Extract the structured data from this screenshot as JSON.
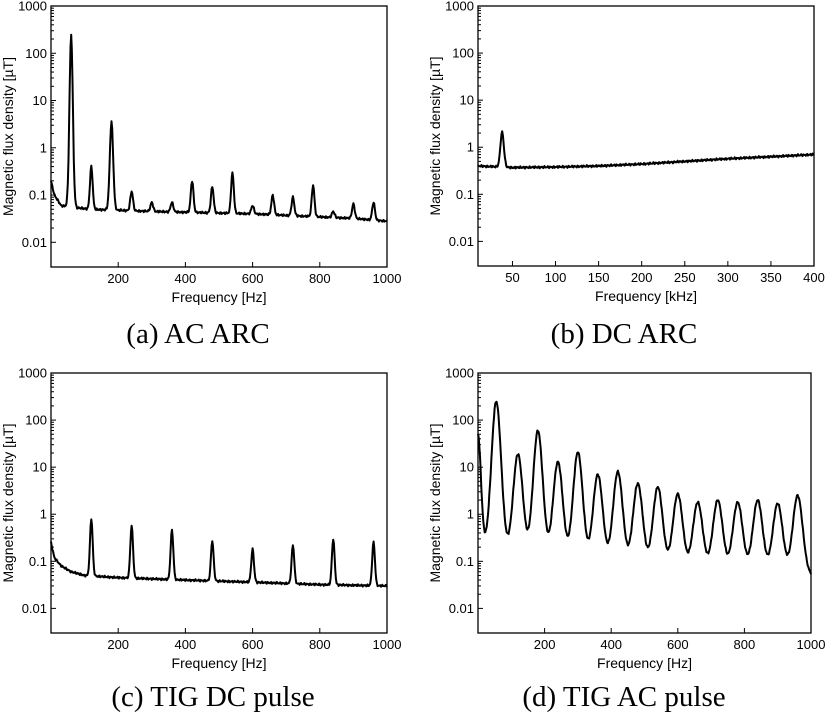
{
  "chart_data": [
    {
      "type": "line",
      "caption": "(a)  AC  ARC",
      "xlabel": "Frequency [Hz]",
      "ylabel": "Magnetic flux density [µT]",
      "x_ticks": [
        200,
        400,
        600,
        800,
        1000
      ],
      "y_ticks": [
        "0.01",
        "0.1",
        "1",
        "10",
        "100",
        "1000"
      ],
      "xlim": [
        0,
        1000
      ],
      "ylim": [
        0.003,
        1000
      ],
      "yscale": "log",
      "baseline": {
        "x": [
          0,
          10,
          30,
          60,
          120,
          300,
          600,
          900,
          1000
        ],
        "y": [
          0.2,
          0.1,
          0.06,
          0.055,
          0.05,
          0.045,
          0.04,
          0.032,
          0.028
        ]
      },
      "peaks": [
        {
          "x": 60,
          "y": 250,
          "w": 5
        },
        {
          "x": 120,
          "y": 0.4,
          "w": 4
        },
        {
          "x": 180,
          "y": 3.5,
          "w": 5
        },
        {
          "x": 240,
          "y": 0.12,
          "w": 4
        },
        {
          "x": 300,
          "y": 0.07,
          "w": 4
        },
        {
          "x": 360,
          "y": 0.07,
          "w": 4
        },
        {
          "x": 420,
          "y": 0.2,
          "w": 4
        },
        {
          "x": 480,
          "y": 0.15,
          "w": 4
        },
        {
          "x": 540,
          "y": 0.3,
          "w": 4
        },
        {
          "x": 600,
          "y": 0.06,
          "w": 4
        },
        {
          "x": 660,
          "y": 0.1,
          "w": 4
        },
        {
          "x": 720,
          "y": 0.09,
          "w": 4
        },
        {
          "x": 780,
          "y": 0.16,
          "w": 4
        },
        {
          "x": 840,
          "y": 0.045,
          "w": 4
        },
        {
          "x": 900,
          "y": 0.065,
          "w": 4
        },
        {
          "x": 960,
          "y": 0.07,
          "w": 4
        }
      ]
    },
    {
      "type": "line",
      "caption": "(b)  DC  ARC",
      "xlabel": "Frequency [kHz]",
      "ylabel": "Magnetic flux density [µT]",
      "x_ticks": [
        50,
        100,
        150,
        200,
        250,
        300,
        350,
        400
      ],
      "y_ticks": [
        "0.01",
        "0.1",
        "1",
        "10",
        "100",
        "1000"
      ],
      "xlim": [
        10,
        400
      ],
      "ylim": [
        0.003,
        1000
      ],
      "yscale": "log",
      "baseline": {
        "x": [
          10,
          50,
          100,
          150,
          200,
          250,
          300,
          350,
          400
        ],
        "y": [
          0.4,
          0.37,
          0.38,
          0.4,
          0.44,
          0.5,
          0.57,
          0.63,
          0.7
        ]
      },
      "peaks": [
        {
          "x": 38,
          "y": 2.1,
          "w": 2
        }
      ]
    },
    {
      "type": "line",
      "caption": "(c)  TIG  DC  pulse",
      "xlabel": "Frequency [Hz]",
      "ylabel": "Magnetic flux density [µT]",
      "x_ticks": [
        200,
        400,
        600,
        800,
        1000
      ],
      "y_ticks": [
        "0.01",
        "0.1",
        "1",
        "10",
        "100",
        "1000"
      ],
      "xlim": [
        0,
        1000
      ],
      "ylim": [
        0.003,
        1000
      ],
      "yscale": "log",
      "baseline": {
        "x": [
          0,
          10,
          30,
          60,
          100,
          200,
          400,
          600,
          800,
          1000
        ],
        "y": [
          0.25,
          0.12,
          0.08,
          0.06,
          0.05,
          0.045,
          0.04,
          0.036,
          0.032,
          0.03
        ]
      },
      "peaks": [
        {
          "x": 120,
          "y": 0.8,
          "w": 4
        },
        {
          "x": 240,
          "y": 0.58,
          "w": 4
        },
        {
          "x": 360,
          "y": 0.47,
          "w": 4
        },
        {
          "x": 480,
          "y": 0.27,
          "w": 4
        },
        {
          "x": 600,
          "y": 0.18,
          "w": 4
        },
        {
          "x": 720,
          "y": 0.22,
          "w": 4
        },
        {
          "x": 840,
          "y": 0.3,
          "w": 4
        },
        {
          "x": 960,
          "y": 0.26,
          "w": 4
        }
      ]
    },
    {
      "type": "line",
      "caption": "(d)  TIG  AC  pulse",
      "xlabel": "Frequency [Hz]",
      "ylabel": "Magnetic flux density [µT]",
      "x_ticks": [
        200,
        400,
        600,
        800,
        1000
      ],
      "y_ticks": [
        "0.01",
        "0.1",
        "1",
        "10",
        "100",
        "1000"
      ],
      "xlim": [
        0,
        1000
      ],
      "ylim": [
        0.003,
        1000
      ],
      "yscale": "log",
      "baseline": {
        "x": [
          0,
          30,
          60,
          100,
          200,
          400,
          600,
          800,
          1000
        ],
        "y": [
          0.2,
          0.15,
          0.13,
          0.11,
          0.09,
          0.07,
          0.06,
          0.055,
          0.05
        ]
      },
      "peaks": [
        {
          "x": 0,
          "y": 50,
          "w": 9
        },
        {
          "x": 55,
          "y": 250,
          "w": 15
        },
        {
          "x": 120,
          "y": 19,
          "w": 15
        },
        {
          "x": 180,
          "y": 60,
          "w": 15
        },
        {
          "x": 240,
          "y": 13,
          "w": 15
        },
        {
          "x": 300,
          "y": 21,
          "w": 15
        },
        {
          "x": 360,
          "y": 7,
          "w": 15
        },
        {
          "x": 420,
          "y": 8,
          "w": 15
        },
        {
          "x": 480,
          "y": 4.5,
          "w": 15
        },
        {
          "x": 540,
          "y": 3.8,
          "w": 15
        },
        {
          "x": 600,
          "y": 2.7,
          "w": 15
        },
        {
          "x": 660,
          "y": 1.8,
          "w": 15
        },
        {
          "x": 720,
          "y": 2,
          "w": 15
        },
        {
          "x": 780,
          "y": 1.8,
          "w": 15
        },
        {
          "x": 840,
          "y": 2,
          "w": 15
        },
        {
          "x": 900,
          "y": 1.7,
          "w": 15
        },
        {
          "x": 960,
          "y": 2.5,
          "w": 15
        }
      ]
    }
  ]
}
